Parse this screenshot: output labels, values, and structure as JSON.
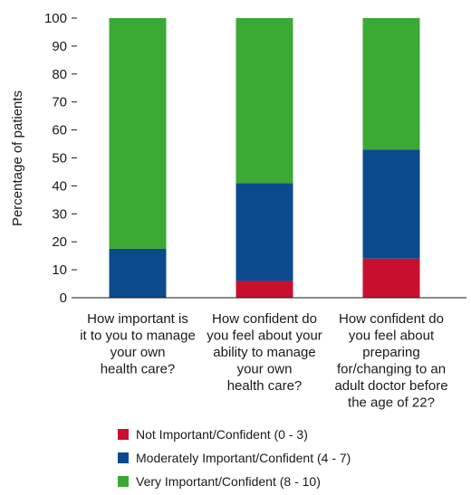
{
  "chart_data": {
    "type": "bar",
    "stacked": true,
    "title": "",
    "ylabel": "Percentage of patients",
    "ylim": [
      0,
      100
    ],
    "yticks": [
      0,
      10,
      20,
      30,
      40,
      50,
      60,
      70,
      80,
      90,
      100
    ],
    "grid": false,
    "legend_position": "bottom",
    "categories": [
      [
        "How important is",
        "it to you to manage",
        "your own",
        "health care?"
      ],
      [
        "How confident do",
        "you feel about your",
        "ability to manage",
        "your own",
        "health care?"
      ],
      [
        "How confident do",
        "you feel about",
        "preparing",
        "for/changing to an",
        "adult doctor before",
        "the age of 22?"
      ]
    ],
    "series": [
      {
        "name": "Not Important/Confident (0 - 3)",
        "color": "#c8102e",
        "values": [
          0,
          6,
          14
        ]
      },
      {
        "name": "Moderately Important/Confident (4 - 7)",
        "color": "#0b4a8c",
        "values": [
          17.5,
          35,
          39
        ]
      },
      {
        "name": "Very Important/Confident (8 - 10)",
        "color": "#3aaa35",
        "values": [
          82.5,
          59,
          47
        ]
      }
    ]
  }
}
